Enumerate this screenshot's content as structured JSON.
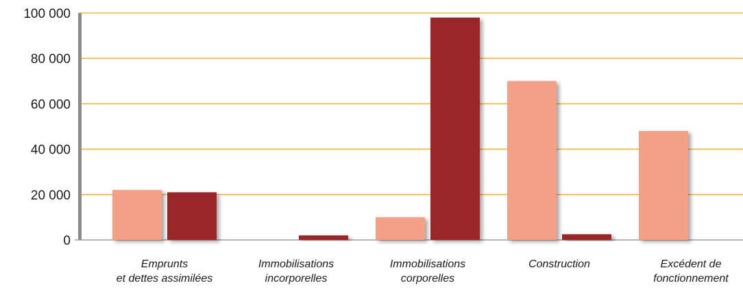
{
  "chart_data": {
    "type": "bar",
    "title": "",
    "xlabel": "",
    "ylabel": "",
    "categories": [
      [
        "Emprunts",
        "et dettes assimilées"
      ],
      [
        "Immobilisations",
        "incorporelles"
      ],
      [
        "Immobilisations",
        "corporelles"
      ],
      [
        "Construction"
      ],
      [
        "Excédent de",
        "fonctionnement"
      ]
    ],
    "series": [
      {
        "color": "#f4a088",
        "values": [
          22000,
          0,
          10000,
          70000,
          48000
        ]
      },
      {
        "color": "#9b252b",
        "values": [
          21000,
          2000,
          98000,
          2500,
          0
        ]
      }
    ],
    "ylim": [
      0,
      100000
    ],
    "yticks": [
      0,
      20000,
      40000,
      60000,
      80000,
      100000
    ],
    "ytick_labels": [
      "0",
      "20 000",
      "40 000",
      "60 000",
      "80 000",
      "100 000"
    ],
    "grid": true,
    "grid_color": "#f3b73a",
    "axis_color": "#8a8a8a"
  }
}
